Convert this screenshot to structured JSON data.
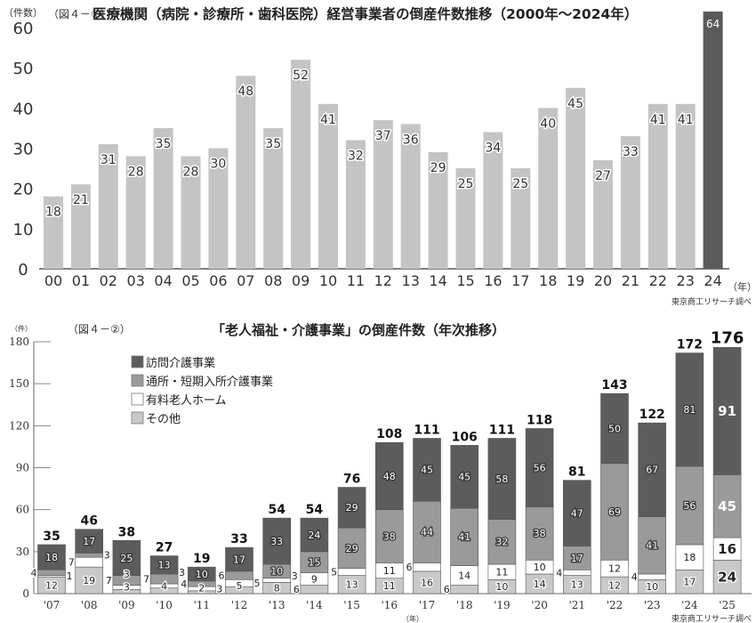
{
  "chart_data": [
    {
      "type": "bar",
      "figure_label": "（図４－①）",
      "title": "医療機関（病院・診療所・歯科医院）経営事業者の倒産件数推移（2000年～2024年）",
      "ylabel": "（件数）",
      "xlabel": "（年）",
      "source": "東京商工リサーチ調べ",
      "ylim": [
        0,
        60
      ],
      "yticks": [
        0,
        10,
        20,
        30,
        40,
        50,
        60
      ],
      "categories": [
        "00",
        "01",
        "02",
        "03",
        "04",
        "05",
        "06",
        "07",
        "08",
        "09",
        "10",
        "11",
        "12",
        "13",
        "14",
        "15",
        "16",
        "17",
        "18",
        "19",
        "20",
        "21",
        "22",
        "23",
        "24"
      ],
      "values": [
        18,
        21,
        31,
        28,
        35,
        28,
        30,
        48,
        35,
        52,
        41,
        32,
        37,
        36,
        29,
        25,
        34,
        25,
        40,
        45,
        27,
        33,
        41,
        41,
        64
      ],
      "colors": {
        "bar": "#c4c4c4",
        "highlight": "#5a5a5a"
      }
    },
    {
      "type": "bar",
      "stacked": true,
      "figure_label": "（図４－②）",
      "title": "「老人福祉・介護事業」の倒産件数（年次推移）",
      "ylabel": "（件）",
      "xlabel": "（年）",
      "source": "東京商工リサーチ調べ",
      "ylim": [
        0,
        180
      ],
      "yticks": [
        0,
        30,
        60,
        90,
        120,
        150,
        180
      ],
      "legend_position": "top-left",
      "categories": [
        "'07",
        "'08",
        "'09",
        "'10",
        "'11",
        "'12",
        "'13",
        "'14",
        "'15",
        "'16",
        "'17",
        "'18",
        "'19",
        "'20",
        "'21",
        "'22",
        "'23",
        "'24",
        "'25"
      ],
      "series": [
        {
          "name": "その他",
          "color": "#c9c9c9",
          "values": [
            12,
            19,
            3,
            4,
            2,
            5,
            8,
            6,
            13,
            11,
            16,
            6,
            10,
            14,
            13,
            12,
            10,
            17,
            24
          ]
        },
        {
          "name": "有料老人ホーム",
          "color": "#ffffff",
          "values": [
            1,
            7,
            3,
            3,
            3,
            5,
            3,
            9,
            5,
            11,
            6,
            14,
            11,
            10,
            4,
            12,
            4,
            18,
            16
          ]
        },
        {
          "name": "通所・短期入所介護事業",
          "color": "#9a9a9a",
          "values": [
            4,
            3,
            7,
            7,
            4,
            6,
            10,
            15,
            29,
            38,
            44,
            41,
            32,
            38,
            17,
            69,
            41,
            56,
            45
          ]
        },
        {
          "name": "訪問介護事業",
          "color": "#5c5c5c",
          "values": [
            18,
            17,
            25,
            13,
            10,
            17,
            33,
            24,
            29,
            48,
            45,
            45,
            58,
            56,
            47,
            50,
            67,
            81,
            91
          ]
        }
      ],
      "totals": [
        35,
        46,
        38,
        27,
        19,
        33,
        54,
        54,
        76,
        108,
        111,
        106,
        111,
        118,
        81,
        143,
        122,
        172,
        176
      ]
    }
  ]
}
